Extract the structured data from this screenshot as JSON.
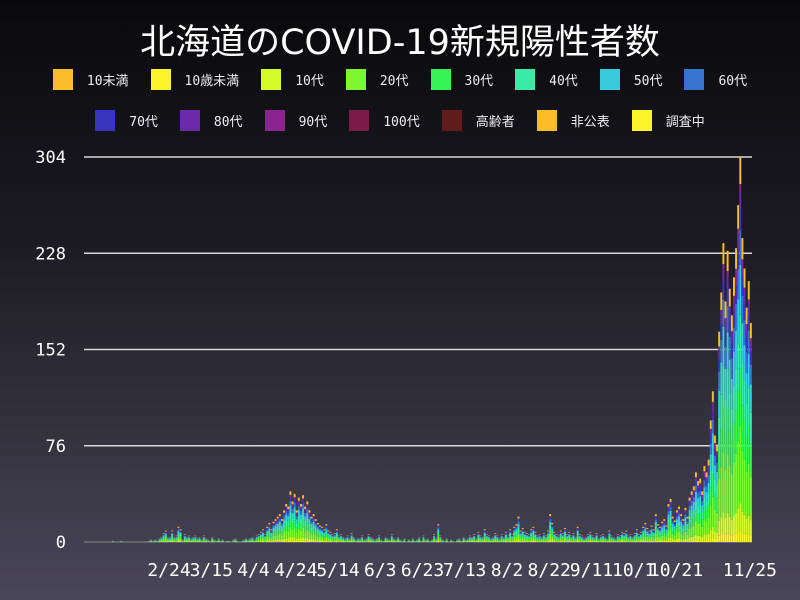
{
  "chart_data": {
    "type": "bar",
    "stacked": true,
    "title": "北海道のCOVID-19新規陽性者数",
    "date_range": [
      "2020-01-28",
      "2020-11-25"
    ],
    "ylim": [
      0,
      304
    ],
    "yticks": [
      0,
      76,
      152,
      228,
      304
    ],
    "xticks": [
      "2/24",
      "3/15",
      "4/4",
      "4/24",
      "5/14",
      "6/3",
      "6/23",
      "7/13",
      "8/2",
      "8/22",
      "9/11",
      "10/1",
      "10/21",
      "11/25"
    ],
    "grid": "horizontal",
    "legend_placement": "top",
    "legend": [
      {
        "name": "10未満",
        "color": "#fdbd2a"
      },
      {
        "name": "10歳未満",
        "color": "#fdf42a"
      },
      {
        "name": "10代",
        "color": "#d5fc2a"
      },
      {
        "name": "20代",
        "color": "#7df72f"
      },
      {
        "name": "30代",
        "color": "#37f456"
      },
      {
        "name": "40代",
        "color": "#38eca8"
      },
      {
        "name": "50代",
        "color": "#38cbdb"
      },
      {
        "name": "60代",
        "color": "#3574cf"
      },
      {
        "name": "70代",
        "color": "#3a33c0"
      },
      {
        "name": "80代",
        "color": "#6b2ba8"
      },
      {
        "name": "90代",
        "color": "#8b248e"
      },
      {
        "name": "100代",
        "color": "#7a1c4a"
      },
      {
        "name": "高齢者",
        "color": "#611c1c"
      },
      {
        "name": "非公表",
        "color": "#fdbd2a"
      },
      {
        "name": "調査中",
        "color": "#fdf42a"
      }
    ],
    "composition": [
      0,
      0.03,
      0.07,
      0.2,
      0.15,
      0.14,
      0.13,
      0.09,
      0.06,
      0.04,
      0.02,
      0,
      0,
      0.07,
      0
    ],
    "daily_totals": [
      1,
      0,
      0,
      0,
      1,
      0,
      0,
      0,
      0,
      0,
      0,
      0,
      0,
      0,
      0,
      0,
      0,
      1,
      2,
      1,
      2,
      1,
      3,
      4,
      7,
      9,
      4,
      4,
      9,
      4,
      5,
      12,
      10,
      2,
      6,
      4,
      5,
      3,
      4,
      5,
      3,
      4,
      2,
      5,
      3,
      2,
      1,
      4,
      2,
      1,
      3,
      1,
      2,
      0,
      1,
      1,
      0,
      2,
      3,
      1,
      0,
      1,
      2,
      3,
      2,
      3,
      4,
      2,
      5,
      6,
      8,
      10,
      6,
      12,
      15,
      10,
      16,
      18,
      20,
      22,
      18,
      25,
      30,
      28,
      40,
      32,
      38,
      25,
      35,
      30,
      37,
      28,
      32,
      25,
      20,
      22,
      18,
      15,
      13,
      12,
      10,
      14,
      9,
      8,
      6,
      7,
      10,
      5,
      6,
      4,
      3,
      5,
      3,
      7,
      4,
      2,
      3,
      3,
      5,
      2,
      3,
      6,
      4,
      3,
      2,
      3,
      5,
      2,
      1,
      4,
      3,
      2,
      6,
      3,
      2,
      4,
      2,
      1,
      3,
      0,
      2,
      1,
      3,
      1,
      2,
      4,
      1,
      5,
      2,
      3,
      1,
      2,
      6,
      3,
      14,
      5,
      2,
      1,
      3,
      0,
      2,
      1,
      0,
      2,
      3,
      1,
      4,
      2,
      3,
      5,
      4,
      6,
      3,
      8,
      5,
      4,
      10,
      6,
      5,
      3,
      4,
      7,
      5,
      3,
      6,
      4,
      8,
      5,
      10,
      6,
      12,
      14,
      20,
      9,
      11,
      8,
      7,
      6,
      10,
      12,
      8,
      5,
      6,
      4,
      7,
      5,
      9,
      22,
      15,
      8,
      6,
      5,
      9,
      7,
      11,
      6,
      8,
      5,
      7,
      4,
      12,
      6,
      5,
      3,
      4,
      6,
      8,
      5,
      4,
      7,
      3,
      5,
      6,
      4,
      3,
      9,
      5,
      4,
      3,
      6,
      5,
      8,
      7,
      9,
      5,
      6,
      4,
      7,
      10,
      6,
      8,
      12,
      15,
      11,
      9,
      13,
      10,
      22,
      14,
      12,
      16,
      18,
      13,
      30,
      34,
      20,
      17,
      25,
      28,
      22,
      18,
      27,
      20,
      35,
      40,
      44,
      55,
      48,
      50,
      40,
      60,
      55,
      65,
      96,
      119,
      84,
      77,
      166,
      197,
      236,
      190,
      230,
      200,
      179,
      209,
      232,
      266,
      304,
      240,
      216,
      185,
      206,
      173
    ]
  }
}
